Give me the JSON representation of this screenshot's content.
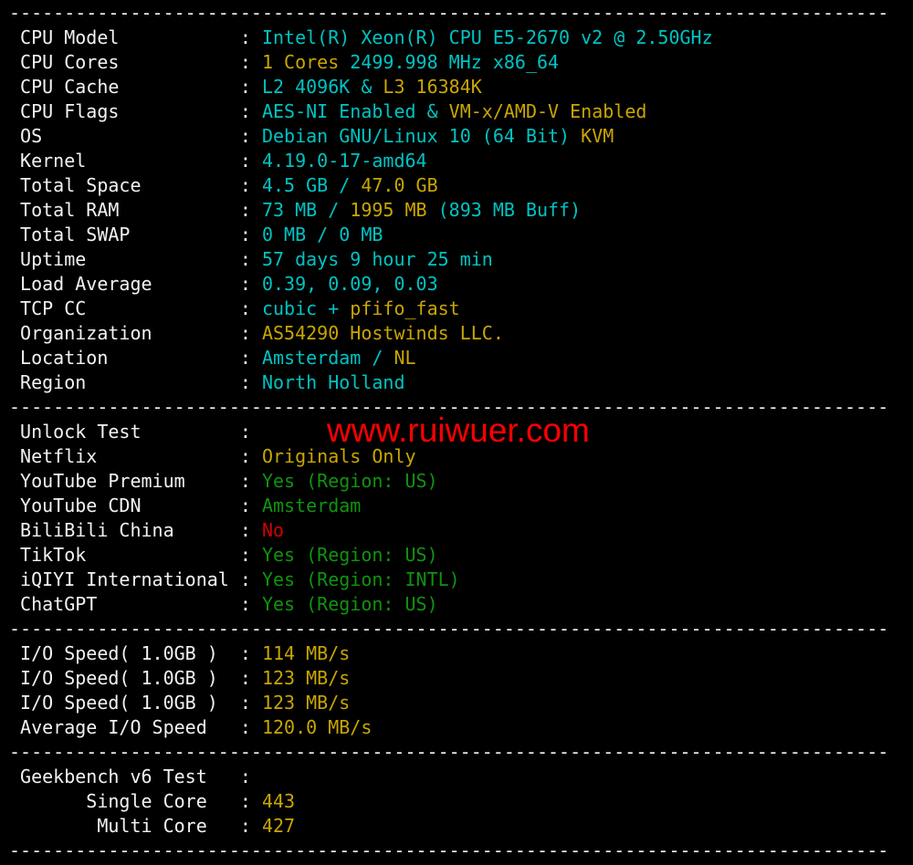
{
  "terminal": {
    "background": "#000000",
    "colors": {
      "label": "#f2f2f2",
      "cyan": "#00c3c3",
      "yellow": "#c9a602",
      "green": "#0f940f",
      "red": "#d40000",
      "watermark_red": "#fe0000"
    },
    "separator_line": "--------------------------------------------------------------------------------",
    "colon": ": ",
    "label_col_width": 20,
    "watermark": {
      "text": "www.ruiwuer.com"
    },
    "sections": [
      {
        "name": "system-info",
        "rows": [
          {
            "label": "CPU Model",
            "indent": 0,
            "segments": [
              {
                "text": "Intel(R) Xeon(R) CPU E5-2670 v2 @ 2.50GHz",
                "color": "cyan"
              }
            ]
          },
          {
            "label": "CPU Cores",
            "indent": 0,
            "segments": [
              {
                "text": "1 Cores",
                "color": "yellow"
              },
              {
                "text": " 2499.998 MHz x86_64",
                "color": "cyan"
              }
            ]
          },
          {
            "label": "CPU Cache",
            "indent": 0,
            "segments": [
              {
                "text": "L2 4096K & ",
                "color": "cyan"
              },
              {
                "text": "L3 16384K",
                "color": "yellow"
              }
            ]
          },
          {
            "label": "CPU Flags",
            "indent": 0,
            "segments": [
              {
                "text": "AES-NI Enabled & ",
                "color": "cyan"
              },
              {
                "text": "VM-x/AMD-V Enabled",
                "color": "yellow"
              }
            ]
          },
          {
            "label": "OS",
            "indent": 0,
            "segments": [
              {
                "text": "Debian GNU/Linux 10 (64 Bit) ",
                "color": "cyan"
              },
              {
                "text": "KVM",
                "color": "yellow"
              }
            ]
          },
          {
            "label": "Kernel",
            "indent": 0,
            "segments": [
              {
                "text": "4.19.0-17-amd64",
                "color": "cyan"
              }
            ]
          },
          {
            "label": "Total Space",
            "indent": 0,
            "segments": [
              {
                "text": "4.5 GB / ",
                "color": "cyan"
              },
              {
                "text": "47.0 GB",
                "color": "yellow"
              }
            ]
          },
          {
            "label": "Total RAM",
            "indent": 0,
            "segments": [
              {
                "text": "73 MB / ",
                "color": "cyan"
              },
              {
                "text": "1995 MB ",
                "color": "yellow"
              },
              {
                "text": "(893 MB Buff)",
                "color": "cyan"
              }
            ]
          },
          {
            "label": "Total SWAP",
            "indent": 0,
            "segments": [
              {
                "text": "0 MB / 0 MB",
                "color": "cyan"
              }
            ]
          },
          {
            "label": "Uptime",
            "indent": 0,
            "segments": [
              {
                "text": "57 days 9 hour 25 min",
                "color": "cyan"
              }
            ]
          },
          {
            "label": "Load Average",
            "indent": 0,
            "segments": [
              {
                "text": "0.39, 0.09, 0.03",
                "color": "cyan"
              }
            ]
          },
          {
            "label": "TCP CC",
            "indent": 0,
            "segments": [
              {
                "text": "cubic + ",
                "color": "cyan"
              },
              {
                "text": "pfifo_fast",
                "color": "yellow"
              }
            ]
          },
          {
            "label": "Organization",
            "indent": 0,
            "segments": [
              {
                "text": "AS54290 Hostwinds LLC.",
                "color": "yellow"
              }
            ]
          },
          {
            "label": "Location",
            "indent": 0,
            "segments": [
              {
                "text": "Amsterdam / ",
                "color": "cyan"
              },
              {
                "text": "NL",
                "color": "yellow"
              }
            ]
          },
          {
            "label": "Region",
            "indent": 0,
            "segments": [
              {
                "text": "North Holland",
                "color": "cyan"
              }
            ]
          }
        ]
      },
      {
        "name": "unlock-test",
        "rows": [
          {
            "label": "Unlock Test",
            "indent": 0,
            "segments": []
          },
          {
            "label": "Netflix",
            "indent": 0,
            "segments": [
              {
                "text": "Originals Only",
                "color": "yellow"
              }
            ]
          },
          {
            "label": "YouTube Premium",
            "indent": 0,
            "segments": [
              {
                "text": "Yes (Region: US)",
                "color": "green"
              }
            ]
          },
          {
            "label": "YouTube CDN",
            "indent": 0,
            "segments": [
              {
                "text": "Amsterdam",
                "color": "green"
              }
            ]
          },
          {
            "label": "BiliBili China",
            "indent": 0,
            "segments": [
              {
                "text": "No",
                "color": "red"
              }
            ]
          },
          {
            "label": "TikTok",
            "indent": 0,
            "segments": [
              {
                "text": "Yes (Region: US)",
                "color": "green"
              }
            ]
          },
          {
            "label": "iQIYI International",
            "indent": 0,
            "segments": [
              {
                "text": "Yes (Region: INTL)",
                "color": "green"
              }
            ]
          },
          {
            "label": "ChatGPT",
            "indent": 0,
            "segments": [
              {
                "text": "Yes (Region: US)",
                "color": "green"
              }
            ]
          }
        ]
      },
      {
        "name": "io-speed",
        "rows": [
          {
            "label": "I/O Speed( 1.0GB )",
            "indent": 0,
            "segments": [
              {
                "text": "114 MB/s",
                "color": "yellow"
              }
            ]
          },
          {
            "label": "I/O Speed( 1.0GB )",
            "indent": 0,
            "segments": [
              {
                "text": "123 MB/s",
                "color": "yellow"
              }
            ]
          },
          {
            "label": "I/O Speed( 1.0GB )",
            "indent": 0,
            "segments": [
              {
                "text": "123 MB/s",
                "color": "yellow"
              }
            ]
          },
          {
            "label": "Average I/O Speed",
            "indent": 0,
            "segments": [
              {
                "text": "120.0 MB/s",
                "color": "yellow"
              }
            ]
          }
        ]
      },
      {
        "name": "geekbench",
        "rows": [
          {
            "label": "Geekbench v6 Test",
            "indent": 0,
            "segments": []
          },
          {
            "label": "Single Core",
            "indent": 7,
            "segments": [
              {
                "text": "443",
                "color": "yellow"
              }
            ]
          },
          {
            "label": "Multi Core",
            "indent": 8,
            "segments": [
              {
                "text": "427",
                "color": "yellow"
              }
            ]
          }
        ]
      }
    ]
  }
}
